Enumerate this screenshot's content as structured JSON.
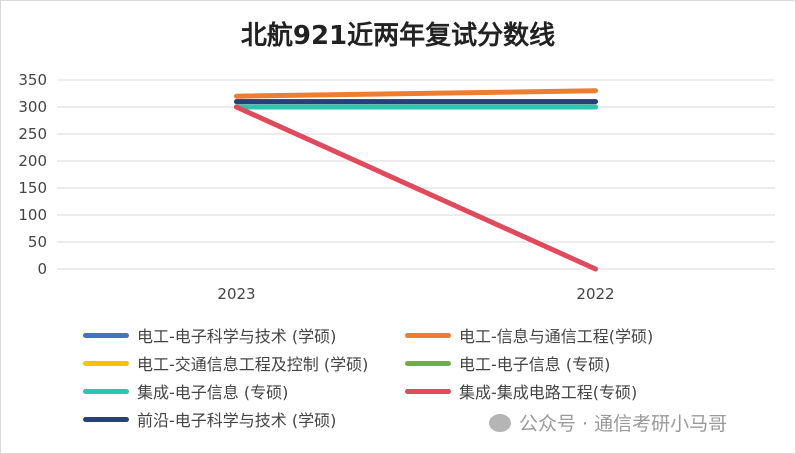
{
  "chart_data": {
    "type": "line",
    "title": "北航921近两年复试分数线",
    "categories": [
      "2023",
      "2022"
    ],
    "ylim": [
      0,
      350
    ],
    "yticks": [
      0,
      50,
      100,
      150,
      200,
      250,
      300,
      350
    ],
    "grid": true,
    "legend_position": "bottom",
    "series": [
      {
        "name": "电工-电子科学与技术 (学硕)",
        "color": "#4472c4",
        "values": [
          310,
          310
        ]
      },
      {
        "name": "电工-信息与通信工程(学硕)",
        "color": "#ed7d31",
        "values": [
          320,
          330
        ]
      },
      {
        "name": "电工-交通信息工程及控制 (学硕)",
        "color": "#ffc000",
        "values": [
          310,
          310
        ]
      },
      {
        "name": "电工-电子信息 (专硕)",
        "color": "#70ad47",
        "values": [
          300,
          300
        ]
      },
      {
        "name": "集成-电子信息 (专硕)",
        "color": "#2ec4b0",
        "values": [
          300,
          300
        ]
      },
      {
        "name": "集成-集成电路工程(专硕)",
        "color": "#e04a5c",
        "values": [
          300,
          0
        ]
      },
      {
        "name": "前沿-电子科学与技术 (学硕)",
        "color": "#26407a",
        "values": [
          310,
          310
        ]
      }
    ]
  },
  "watermark": "公众号 · 通信考研小马哥"
}
